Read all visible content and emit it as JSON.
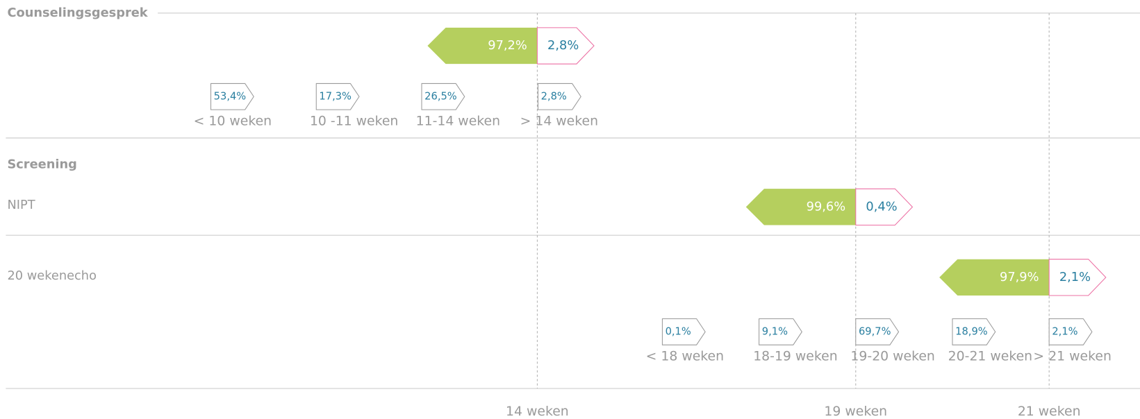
{
  "counseling": {
    "title": "Counselingsgesprek",
    "main": {
      "in": "97,2%",
      "out": "2,8%"
    },
    "tags": [
      {
        "value": "53,4%",
        "label": "< 10 weken"
      },
      {
        "value": "17,3%",
        "label": "10 -11 weken"
      },
      {
        "value": "26,5%",
        "label": "11-14 weken"
      },
      {
        "value": "2,8%",
        "label": "> 14 weken"
      }
    ]
  },
  "screening": {
    "title": "Screening",
    "nipt": {
      "label": "NIPT",
      "in": "99,6%",
      "out": "0,4%"
    },
    "echo": {
      "label": "20 wekenecho",
      "in": "97,9%",
      "out": "2,1%",
      "tags": [
        {
          "value": "0,1%",
          "label": "< 18 weken"
        },
        {
          "value": "9,1%",
          "label": "18-19 weken"
        },
        {
          "value": "69,7%",
          "label": "19-20 weken"
        },
        {
          "value": "18,9%",
          "label": "20-21 weken"
        },
        {
          "value": "2,1%",
          "label": "> 21 weken"
        }
      ]
    }
  },
  "axis": [
    "14 weken",
    "19 weken",
    "21 weken"
  ]
}
